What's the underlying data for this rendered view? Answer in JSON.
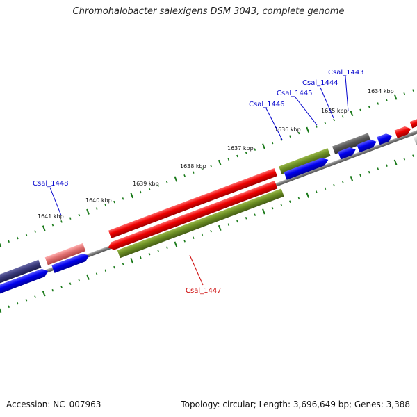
{
  "title": "Chromohalobacter salexigens DSM 3043, complete genome",
  "footer": {
    "accession": "Accession: NC_007963",
    "stats": "Topology: circular; Length: 3,696,649 bp; Genes: 3,388"
  },
  "ticks": {
    "outer": [
      {
        "label": "1634 kbp"
      },
      {
        "label": "1635 kbp"
      },
      {
        "label": "1636 kbp"
      },
      {
        "label": "1637 kbp"
      },
      {
        "label": "1638 kbp"
      },
      {
        "label": "1639 kbp"
      },
      {
        "label": "1640 kbp"
      },
      {
        "label": "1641 kbp"
      }
    ]
  },
  "gene_labels": [
    {
      "text": "Csal_1443",
      "color": "#0000cc"
    },
    {
      "text": "Csal_1444",
      "color": "#0000cc"
    },
    {
      "text": "Csal_1445",
      "color": "#0000cc"
    },
    {
      "text": "Csal_1446",
      "color": "#0000cc"
    },
    {
      "text": "Csal_1448",
      "color": "#0000cc"
    },
    {
      "text": "Csal_1447",
      "color": "#cc0000"
    }
  ],
  "colors": {
    "forward_cds": "#0000ee",
    "gene_red": "#ee0000",
    "gene_olive": "#6b8e23",
    "gene_dark": "#555555",
    "gene_navy": "#2a2a6a",
    "gene_pink": "#e07070",
    "backbone": "#777777",
    "tick": "#1a7a1a"
  }
}
